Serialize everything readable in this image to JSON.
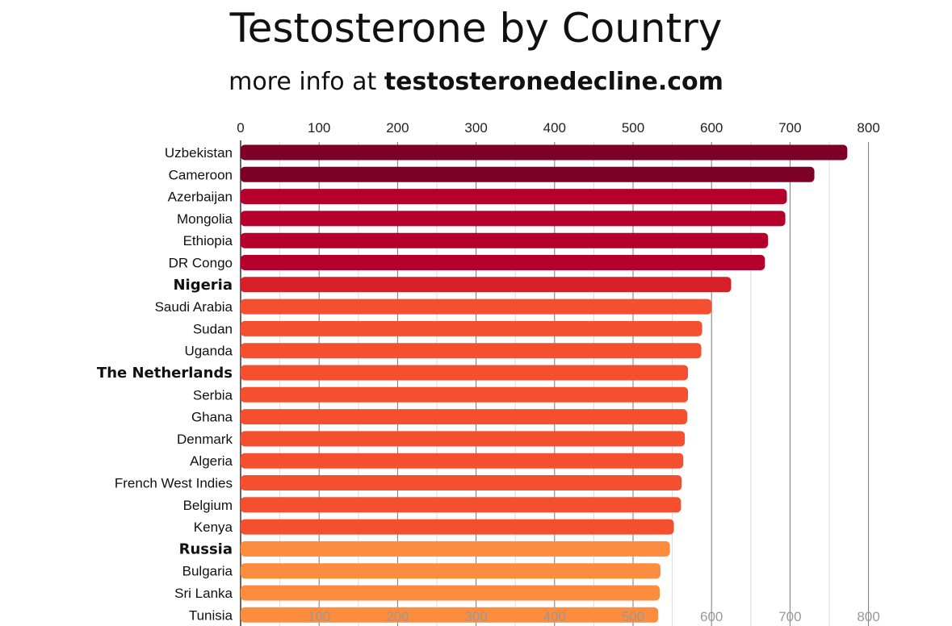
{
  "header": {
    "title": "Testosterone by Country",
    "subtitle_prefix": "more info at ",
    "subtitle_link": "testosteronedecline.com"
  },
  "colors": {
    "darkest": "#7d0026",
    "dark": "#b5002b",
    "red": "#d61f26",
    "orange": "#f4502f",
    "light_orange": "#fc8c3e"
  },
  "chart_data": {
    "type": "bar",
    "orientation": "horizontal",
    "title": "Testosterone by Country",
    "subtitle": "more info at testosteronedecline.com",
    "xlim": [
      0,
      800
    ],
    "x_ticks": [
      0,
      100,
      200,
      300,
      400,
      500,
      600,
      700,
      800
    ],
    "bottom_ticks": [
      100,
      200,
      300,
      400,
      500,
      600,
      700,
      800
    ],
    "grid": true,
    "categories": [
      "Uzbekistan",
      "Cameroon",
      "Azerbaijan",
      "Mongolia",
      "Ethiopia",
      "DR Congo",
      "Nigeria",
      "Saudi Arabia",
      "Sudan",
      "Uganda",
      "The Netherlands",
      "Serbia",
      "Ghana",
      "Denmark",
      "Algeria",
      "French West Indies",
      "Belgium",
      "Kenya",
      "Russia",
      "Bulgaria",
      "Sri Lanka",
      "Tunisia"
    ],
    "values": [
      773,
      731,
      696,
      694,
      672,
      668,
      625,
      600,
      588,
      587,
      570,
      570,
      569,
      566,
      564,
      562,
      561,
      552,
      547,
      535,
      534,
      532
    ],
    "bold_categories": [
      "Nigeria",
      "The Netherlands",
      "Russia"
    ],
    "bar_colors": [
      "#7d0026",
      "#7d0026",
      "#b5002b",
      "#b5002b",
      "#b5002b",
      "#b5002b",
      "#d61f26",
      "#f4502f",
      "#f4502f",
      "#f4502f",
      "#f4502f",
      "#f4502f",
      "#f4502f",
      "#f4502f",
      "#f4502f",
      "#f4502f",
      "#f4502f",
      "#f4502f",
      "#fc8c3e",
      "#fc8c3e",
      "#fc8c3e",
      "#fc8c3e"
    ]
  }
}
